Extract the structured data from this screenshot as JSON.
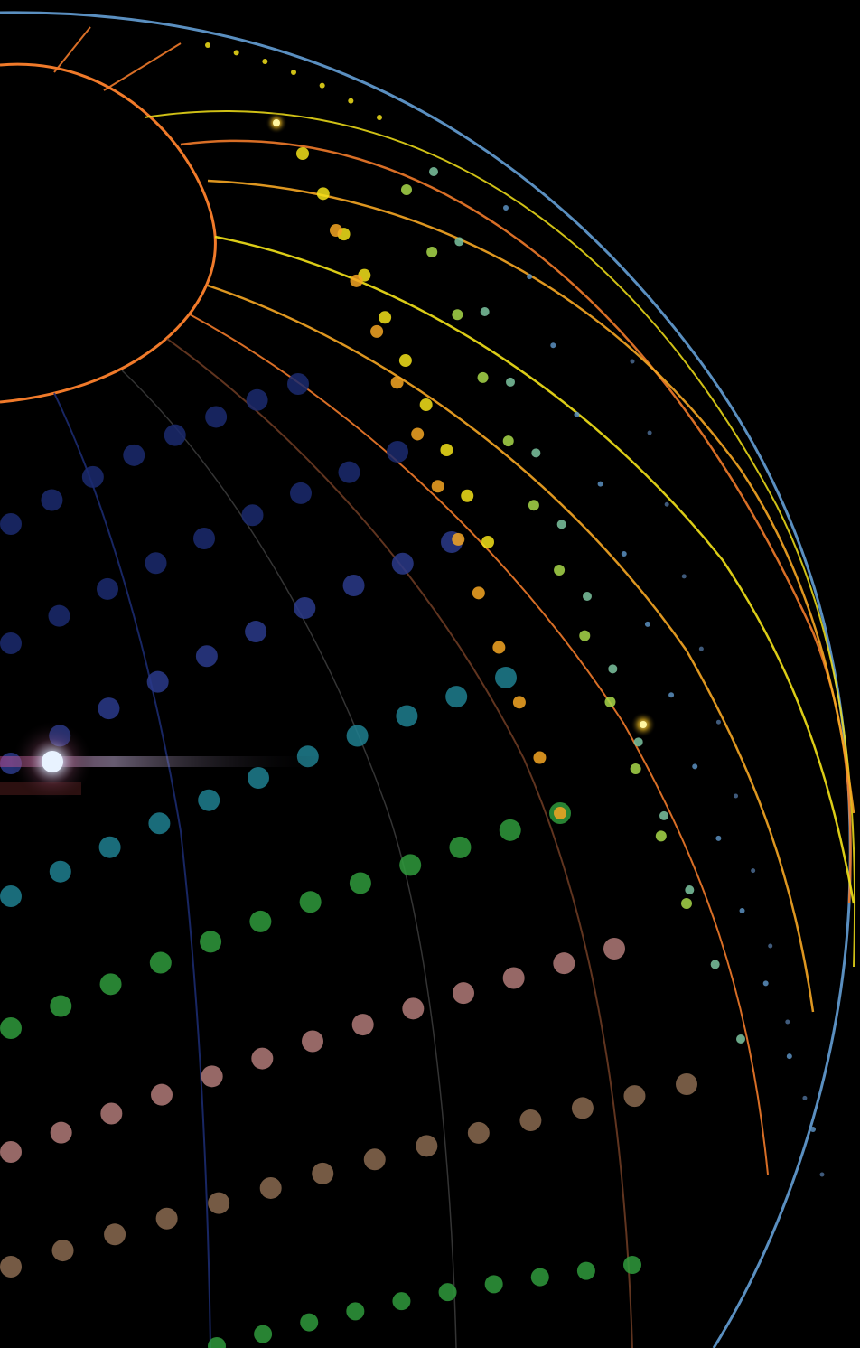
{
  "artwork": {
    "description_kind": "abstract-sphere-wallpaper",
    "background_color": "#000000",
    "palette": {
      "orange": "#f07a2a",
      "amber": "#f5a623",
      "yellow": "#f3e21a",
      "lime": "#a8d84a",
      "sage": "#7cc4a0",
      "steel_blue": "#5a8fc0",
      "navy": "#1b2a6e",
      "teal": "#1f7f8f",
      "green": "#2f9a3c",
      "brown": "#6a3a22",
      "rose": "#b07a78",
      "flare": "#e8f2ff"
    },
    "icons": [
      "lens-flare-icon",
      "glow-star-icon"
    ]
  }
}
